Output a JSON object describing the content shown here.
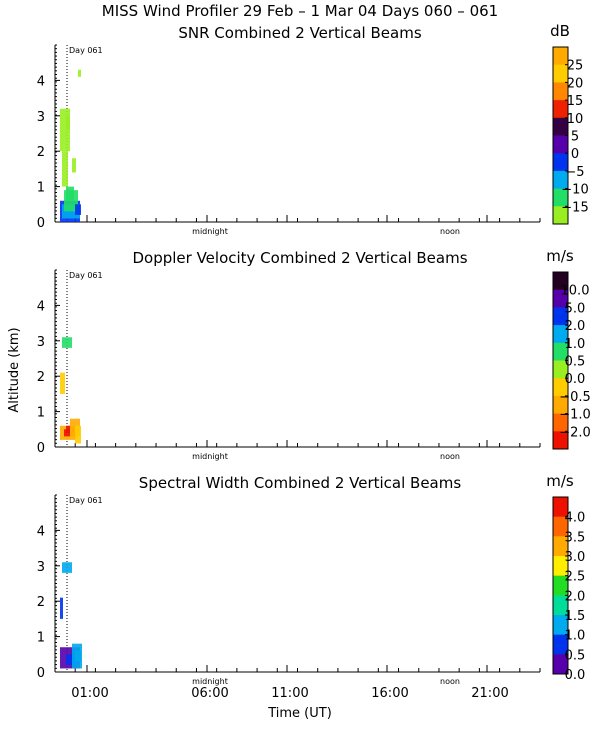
{
  "header": {
    "line1": "MISS Wind Profiler  29 Feb –  1 Mar 04 Days 060 – 061"
  },
  "axes": {
    "ylabel": "Altitude (km)",
    "xlabel": "Time (UT)",
    "y_ticks": [
      "0",
      "1",
      "2",
      "3",
      "4"
    ],
    "x_ticks": [
      "01:00",
      "06:00",
      "11:00",
      "16:00",
      "21:00"
    ],
    "markers": [
      "midnight",
      "noon"
    ],
    "day_label": "Day 061"
  },
  "chart_data": [
    {
      "type": "heatmap",
      "title": "SNR Combined 2 Vertical Beams",
      "unit": "dB",
      "ylim": [
        0,
        4.9
      ],
      "colorbar_labels": [
        "25",
        "20",
        "15",
        "10",
        "5",
        "0",
        "−5",
        "−10",
        "−15"
      ],
      "colorbar_colors": [
        "#ffaa00",
        "#ffcc00",
        "#ff8800",
        "#ee2200",
        "#330044",
        "#5500aa",
        "#0033ee",
        "#00aaee",
        "#22dd66",
        "#99ee22"
      ],
      "observations": "Echoes only near 00:00–01:00 UT; strongest (blue) below 0.5 km, green scatter up to ~3.2 km, isolated return near 4.2 km"
    },
    {
      "type": "heatmap",
      "title": "Doppler Velocity Combined 2 Vertical Beams",
      "unit": "m/s",
      "ylim": [
        0,
        4.9
      ],
      "colorbar_labels": [
        "10.0",
        "5.0",
        "2.0",
        "1.0",
        "0.5",
        "0.0",
        "−0.5",
        "−1.0",
        "−2.0"
      ],
      "colorbar_colors": [
        "#220022",
        "#5500aa",
        "#0033ee",
        "#00aaee",
        "#22dd66",
        "#99ee22",
        "#ffcc00",
        "#ffaa00",
        "#ff6600",
        "#ee1100"
      ],
      "observations": "Orange/red (downward) velocities below 1 km, green near 3 km"
    },
    {
      "type": "heatmap",
      "title": "Spectral Width Combined 2 Vertical Beams",
      "unit": "m/s",
      "ylim": [
        0,
        4.9
      ],
      "colorbar_labels": [
        "4.0",
        "3.5",
        "3.0",
        "2.5",
        "2.0",
        "1.5",
        "1.0",
        "0.5",
        "0.0"
      ],
      "colorbar_colors": [
        "#ee1100",
        "#ff6600",
        "#ffaa00",
        "#ffee00",
        "#22dd22",
        "#00dd99",
        "#00aaee",
        "#0033ee",
        "#5500aa"
      ],
      "observations": "Mostly low widths (blue/purple) below 0.8 km and near 3 km"
    }
  ]
}
